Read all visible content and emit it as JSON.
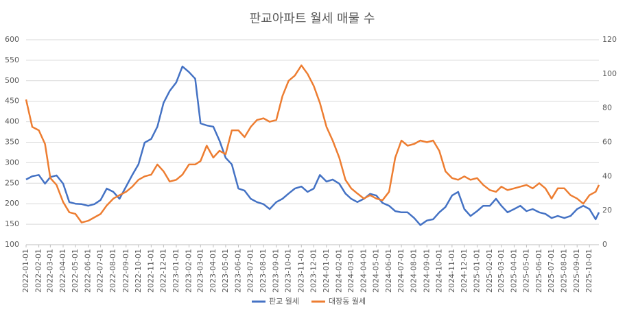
{
  "chart_data": {
    "type": "line",
    "title": "판교아파트 월세 매물 수",
    "x": [
      "2022-01-01",
      "2022-01-16",
      "2022-02-01",
      "2022-02-16",
      "2022-03-01",
      "2022-03-16",
      "2022-04-01",
      "2022-04-16",
      "2022-05-01",
      "2022-05-16",
      "2022-06-01",
      "2022-06-16",
      "2022-07-01",
      "2022-07-16",
      "2022-08-01",
      "2022-08-16",
      "2022-09-01",
      "2022-09-16",
      "2022-10-01",
      "2022-10-16",
      "2022-11-01",
      "2022-11-16",
      "2022-12-01",
      "2022-12-16",
      "2023-01-01",
      "2023-01-16",
      "2023-02-01",
      "2023-02-16",
      "2023-03-01",
      "2023-03-16",
      "2023-04-01",
      "2023-04-16",
      "2023-05-01",
      "2023-05-16",
      "2023-06-01",
      "2023-06-16",
      "2023-07-01",
      "2023-07-16",
      "2023-08-01",
      "2023-08-16",
      "2023-09-01",
      "2023-09-16",
      "2023-10-01",
      "2023-10-16",
      "2023-11-01",
      "2023-11-16",
      "2023-12-01",
      "2023-12-16",
      "2024-01-01",
      "2024-01-16",
      "2024-02-01",
      "2024-02-16",
      "2024-03-01",
      "2024-03-16",
      "2024-04-01",
      "2024-04-16",
      "2024-05-01",
      "2024-05-16",
      "2024-06-01",
      "2024-06-16",
      "2024-07-01",
      "2024-07-16",
      "2024-08-01",
      "2024-08-16",
      "2024-09-01",
      "2024-09-16",
      "2024-10-01",
      "2024-10-16",
      "2024-11-01",
      "2024-11-16",
      "2024-12-01",
      "2024-12-16",
      "2025-01-01",
      "2025-01-16",
      "2025-02-01",
      "2025-02-16",
      "2025-03-01",
      "2025-03-16",
      "2025-04-01",
      "2025-04-16",
      "2025-05-01",
      "2025-05-16",
      "2025-06-01",
      "2025-06-16",
      "2025-07-01",
      "2025-07-16",
      "2025-08-01",
      "2025-08-16",
      "2025-09-01",
      "2025-09-16",
      "2025-10-01",
      "2025-10-16",
      "2025-10-24"
    ],
    "series": [
      {
        "name": "판교 월세",
        "color": "#4472c4",
        "axis": "y",
        "values": [
          259,
          267,
          270,
          249,
          265,
          269,
          249,
          204,
          200,
          199,
          195,
          199,
          209,
          237,
          229,
          212,
          242,
          270,
          296,
          349,
          358,
          388,
          446,
          475,
          496,
          535,
          521,
          505,
          396,
          391,
          388,
          354,
          312,
          296,
          237,
          232,
          212,
          204,
          199,
          187,
          204,
          212,
          225,
          237,
          242,
          229,
          237,
          270,
          254,
          259,
          249,
          225,
          212,
          204,
          212,
          224,
          220,
          202,
          195,
          182,
          179,
          179,
          165,
          148,
          159,
          162,
          179,
          192,
          220,
          229,
          187,
          170,
          182,
          195,
          195,
          212,
          195,
          179,
          187,
          195,
          182,
          187,
          179,
          175,
          165,
          170,
          165,
          170,
          187,
          195,
          187,
          162,
          179
        ]
      },
      {
        "name": "대장동 월세",
        "color": "#ed7d31",
        "axis": "y2",
        "values": [
          85,
          69,
          67,
          59,
          39,
          35,
          25,
          19,
          18,
          13,
          14,
          16,
          18,
          23,
          27,
          29,
          31,
          34,
          38,
          40,
          41,
          47,
          43,
          37,
          38,
          41,
          47,
          47,
          49,
          58,
          51,
          55,
          53,
          67,
          67,
          63,
          69,
          73,
          74,
          72,
          73,
          87,
          96,
          99,
          105,
          100,
          93,
          83,
          69,
          61,
          51,
          38,
          33,
          30,
          27,
          29,
          27,
          26,
          31,
          51,
          61,
          58,
          59,
          61,
          60,
          61,
          55,
          43,
          39,
          38,
          40,
          38,
          39,
          35,
          32,
          31,
          34,
          32,
          33,
          34,
          35,
          33,
          36,
          33,
          27,
          33,
          33,
          29,
          27,
          24,
          29,
          31,
          35
        ]
      }
    ],
    "xlim": [
      "2022-01-01",
      "2025-10-24"
    ],
    "xticks": [
      "2022-01-01",
      "2022-02-01",
      "2022-03-01",
      "2022-04-01",
      "2022-05-01",
      "2022-06-01",
      "2022-07-01",
      "2022-08-01",
      "2022-09-01",
      "2022-10-01",
      "2022-11-01",
      "2022-12-01",
      "2023-01-01",
      "2023-02-01",
      "2023-03-01",
      "2023-04-01",
      "2023-05-01",
      "2023-06-01",
      "2023-07-01",
      "2023-08-01",
      "2023-09-01",
      "2023-10-01",
      "2023-11-01",
      "2023-12-01",
      "2024-01-01",
      "2024-02-01",
      "2024-03-01",
      "2024-04-01",
      "2024-05-01",
      "2024-06-01",
      "2024-07-01",
      "2024-08-01",
      "2024-09-01",
      "2024-10-01",
      "2024-11-01",
      "2024-12-01",
      "2025-01-01",
      "2025-02-01",
      "2025-03-01",
      "2025-04-01",
      "2025-05-01",
      "2025-06-01",
      "2025-07-01",
      "2025-08-01",
      "2025-09-01",
      "2025-10-01"
    ],
    "ylim": [
      100,
      600
    ],
    "yticks": [
      100,
      150,
      200,
      250,
      300,
      350,
      400,
      450,
      500,
      550,
      600
    ],
    "y2lim": [
      0,
      120
    ],
    "y2ticks": [
      0,
      20,
      40,
      60,
      80,
      100,
      120
    ],
    "grid": true,
    "legend": "bottom"
  }
}
